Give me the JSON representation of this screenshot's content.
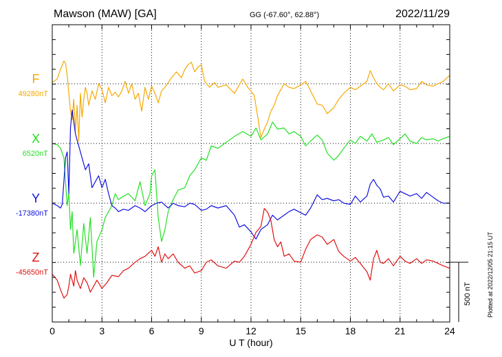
{
  "header": {
    "station": "Mawson (MAW)  [GA]",
    "coords": "GG (-67.60°,  62.88°)",
    "date": "2022/11/29"
  },
  "plotted_note": "Plotted at 2022/12/05 21:15 UT",
  "scale_label": "500 nT",
  "chart_data": {
    "type": "line",
    "xlabel": "U T (hour)",
    "xlim": [
      0,
      24
    ],
    "xticks": [
      0,
      3,
      6,
      9,
      12,
      15,
      18,
      21,
      24
    ],
    "grid": true,
    "y_scale_nT_per_bar": 500,
    "series": [
      {
        "name": "F",
        "color": "#f5a800",
        "baseline_label": "49280nT",
        "baseline": 49280,
        "x": [
          0,
          0.3,
          0.5,
          0.7,
          0.8,
          0.9,
          1.0,
          1.1,
          1.2,
          1.3,
          1.4,
          1.5,
          1.6,
          1.7,
          1.8,
          1.9,
          2.0,
          2.1,
          2.2,
          2.4,
          2.6,
          2.8,
          3.0,
          3.2,
          3.4,
          3.6,
          3.8,
          4.0,
          4.2,
          4.4,
          4.6,
          4.8,
          5.0,
          5.2,
          5.4,
          5.6,
          5.8,
          6.0,
          6.2,
          6.4,
          6.6,
          6.8,
          7.0,
          7.2,
          7.5,
          7.8,
          8.0,
          8.2,
          8.4,
          8.6,
          8.8,
          9.0,
          9.2,
          9.5,
          9.8,
          10.0,
          10.5,
          11.0,
          11.5,
          11.8,
          12.0,
          12.2,
          12.4,
          12.6,
          12.8,
          13.0,
          13.2,
          13.4,
          13.6,
          13.8,
          14.0,
          14.3,
          14.6,
          15.0,
          15.3,
          15.6,
          16.0,
          16.3,
          16.6,
          17.0,
          17.3,
          17.6,
          18.0,
          18.3,
          18.6,
          19.0,
          19.2,
          19.4,
          19.6,
          19.8,
          20.0,
          20.3,
          20.6,
          21.0,
          21.3,
          21.6,
          22.0,
          22.3,
          22.6,
          23.0,
          23.3,
          23.6,
          24.0
        ],
        "y": [
          49290,
          49320,
          49400,
          49470,
          49450,
          49350,
          49200,
          49050,
          48980,
          49150,
          48880,
          49100,
          48800,
          49200,
          49000,
          49150,
          49250,
          49200,
          49100,
          49220,
          49150,
          49280,
          49230,
          49120,
          49250,
          49180,
          49210,
          49170,
          49220,
          49300,
          49200,
          49280,
          49150,
          49200,
          49050,
          49250,
          49150,
          49260,
          49200,
          49120,
          49220,
          49250,
          49290,
          49330,
          49380,
          49330,
          49400,
          49440,
          49460,
          49380,
          49420,
          49440,
          49300,
          49250,
          49290,
          49250,
          49270,
          49200,
          49320,
          49250,
          49220,
          49180,
          49010,
          48830,
          48900,
          48960,
          49050,
          49100,
          49180,
          49230,
          49280,
          49250,
          49240,
          49270,
          49300,
          49220,
          49110,
          49100,
          49030,
          49080,
          49150,
          49200,
          49250,
          49230,
          49260,
          49300,
          49390,
          49330,
          49280,
          49250,
          49230,
          49280,
          49220,
          49270,
          49260,
          49230,
          49240,
          49300,
          49270,
          49260,
          49280,
          49300,
          49350
        ]
      },
      {
        "name": "X",
        "color": "#22e022",
        "baseline_label": "6520nT",
        "baseline": 6520,
        "x": [
          0,
          0.3,
          0.5,
          0.7,
          0.9,
          1.0,
          1.1,
          1.2,
          1.3,
          1.5,
          1.7,
          1.9,
          2.1,
          2.3,
          2.5,
          2.7,
          3.0,
          3.2,
          3.4,
          3.6,
          3.8,
          4.0,
          4.3,
          4.6,
          5.0,
          5.3,
          5.6,
          5.9,
          6.0,
          6.2,
          6.4,
          6.6,
          6.8,
          7.0,
          7.3,
          7.6,
          8.0,
          8.3,
          8.6,
          9.0,
          9.3,
          9.6,
          10.0,
          10.5,
          11.0,
          11.5,
          12.0,
          12.3,
          12.6,
          13.0,
          13.3,
          13.6,
          14.0,
          14.3,
          14.6,
          15.0,
          15.3,
          15.6,
          16.0,
          16.3,
          16.6,
          17.0,
          17.3,
          17.6,
          18.0,
          18.3,
          18.6,
          19.0,
          19.3,
          19.6,
          20.0,
          20.3,
          20.6,
          21.0,
          21.3,
          21.6,
          22.0,
          22.3,
          22.6,
          23.0,
          23.3,
          23.6,
          24.0
        ],
        "y": [
          6520,
          6510,
          6480,
          6400,
          6000,
          6100,
          5800,
          5950,
          5600,
          5800,
          5500,
          5850,
          5600,
          5900,
          5400,
          5700,
          5800,
          5900,
          5950,
          6000,
          6100,
          6050,
          6080,
          6100,
          6040,
          6200,
          6000,
          6100,
          6250,
          6300,
          5900,
          5700,
          5800,
          5950,
          6050,
          6130,
          6150,
          6250,
          6300,
          6400,
          6380,
          6500,
          6480,
          6530,
          6580,
          6620,
          6580,
          6650,
          6550,
          6600,
          6700,
          6640,
          6650,
          6600,
          6620,
          6580,
          6500,
          6540,
          6590,
          6550,
          6440,
          6380,
          6420,
          6480,
          6550,
          6520,
          6580,
          6540,
          6600,
          6530,
          6550,
          6570,
          6510,
          6560,
          6600,
          6540,
          6520,
          6570,
          6550,
          6560,
          6540,
          6560,
          6580
        ]
      },
      {
        "name": "Y",
        "color": "#1010e0",
        "baseline_label": "-17380nT",
        "baseline": -17380,
        "x": [
          0,
          0.3,
          0.5,
          0.6,
          0.7,
          0.8,
          0.9,
          1.0,
          1.1,
          1.2,
          1.4,
          1.6,
          1.8,
          2.0,
          2.2,
          2.4,
          2.6,
          2.8,
          3.0,
          3.2,
          3.4,
          3.6,
          3.8,
          4.0,
          4.3,
          4.6,
          5.0,
          5.3,
          5.6,
          6.0,
          6.3,
          6.6,
          7.0,
          7.3,
          7.6,
          8.0,
          8.3,
          8.6,
          9.0,
          9.3,
          9.6,
          10.0,
          10.5,
          11.0,
          11.3,
          11.6,
          12.0,
          12.3,
          12.6,
          13.0,
          13.3,
          13.6,
          14.0,
          14.3,
          14.6,
          15.0,
          15.3,
          15.6,
          16.0,
          16.3,
          16.6,
          17.0,
          17.3,
          17.6,
          18.0,
          18.3,
          18.6,
          19.0,
          19.2,
          19.4,
          19.6,
          19.8,
          20.0,
          20.3,
          20.6,
          21.0,
          21.3,
          21.6,
          22.0,
          22.3,
          22.6,
          23.0,
          23.3,
          23.6,
          24.0
        ],
        "y": [
          -17380,
          -17400,
          -17420,
          -17390,
          -17200,
          -17000,
          -16950,
          -17300,
          -16750,
          -16600,
          -16800,
          -16900,
          -17000,
          -17100,
          -17050,
          -17250,
          -17200,
          -17150,
          -17250,
          -17180,
          -17300,
          -17400,
          -17420,
          -17450,
          -17430,
          -17440,
          -17400,
          -17420,
          -17450,
          -17400,
          -17380,
          -17370,
          -17420,
          -17380,
          -17400,
          -17410,
          -17380,
          -17390,
          -17440,
          -17430,
          -17400,
          -17420,
          -17400,
          -17480,
          -17580,
          -17560,
          -17620,
          -17680,
          -17600,
          -17560,
          -17480,
          -17520,
          -17480,
          -17450,
          -17430,
          -17460,
          -17480,
          -17420,
          -17310,
          -17350,
          -17340,
          -17360,
          -17350,
          -17380,
          -17390,
          -17320,
          -17370,
          -17320,
          -17220,
          -17180,
          -17230,
          -17260,
          -17330,
          -17320,
          -17370,
          -17280,
          -17300,
          -17320,
          -17300,
          -17340,
          -17290,
          -17330,
          -17360,
          -17380,
          -17380
        ]
      },
      {
        "name": "Z",
        "color": "#e01010",
        "baseline_label": "-45650nT",
        "baseline": -45650,
        "x": [
          0,
          0.3,
          0.5,
          0.7,
          0.9,
          1.0,
          1.1,
          1.2,
          1.3,
          1.4,
          1.5,
          1.7,
          1.9,
          2.1,
          2.3,
          2.5,
          2.7,
          3.0,
          3.3,
          3.6,
          4.0,
          4.3,
          4.6,
          5.0,
          5.3,
          5.6,
          6.0,
          6.2,
          6.4,
          6.6,
          6.8,
          7.0,
          7.3,
          7.6,
          8.0,
          8.3,
          8.6,
          9.0,
          9.3,
          9.6,
          10.0,
          10.5,
          11.0,
          11.3,
          11.6,
          12.0,
          12.3,
          12.6,
          12.8,
          13.0,
          13.2,
          13.4,
          13.6,
          13.8,
          14.0,
          14.3,
          14.6,
          15.0,
          15.3,
          15.6,
          16.0,
          16.3,
          16.6,
          17.0,
          17.3,
          17.6,
          18.0,
          18.3,
          18.6,
          19.0,
          19.2,
          19.4,
          19.6,
          19.8,
          20.0,
          20.3,
          20.6,
          21.0,
          21.3,
          21.6,
          22.0,
          22.3,
          22.6,
          23.0,
          23.3,
          23.6,
          24.0
        ],
        "y": [
          -45750,
          -45800,
          -45880,
          -45950,
          -45920,
          -45850,
          -45750,
          -45800,
          -45850,
          -45720,
          -45800,
          -45870,
          -45780,
          -45820,
          -45900,
          -45850,
          -45800,
          -45870,
          -45820,
          -45760,
          -45770,
          -45720,
          -45700,
          -45650,
          -45620,
          -45600,
          -45550,
          -45600,
          -45520,
          -45650,
          -45580,
          -45620,
          -45580,
          -45650,
          -45700,
          -45680,
          -45740,
          -45720,
          -45650,
          -45630,
          -45680,
          -45700,
          -45640,
          -45650,
          -45600,
          -45500,
          -45400,
          -45350,
          -45200,
          -45230,
          -45300,
          -45460,
          -45520,
          -45480,
          -45600,
          -45580,
          -45640,
          -45650,
          -45540,
          -45460,
          -45420,
          -45440,
          -45500,
          -45460,
          -45560,
          -45600,
          -45640,
          -45610,
          -45660,
          -45730,
          -45800,
          -45620,
          -45550,
          -45650,
          -45660,
          -45620,
          -45680,
          -45600,
          -45640,
          -45660,
          -45620,
          -45660,
          -45630,
          -45640,
          -45660,
          -45680,
          -45700
        ]
      }
    ]
  }
}
